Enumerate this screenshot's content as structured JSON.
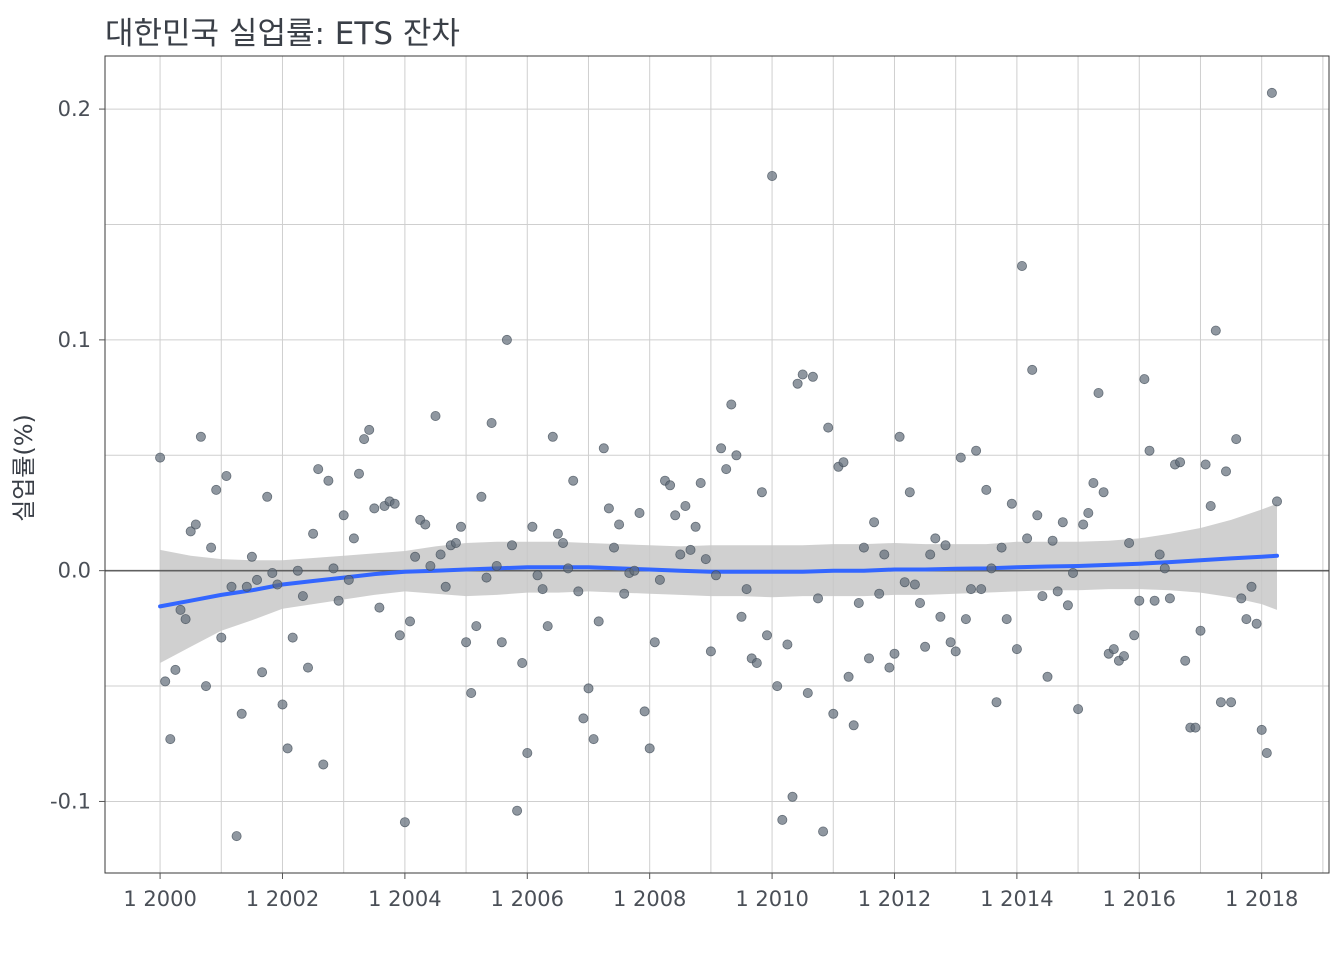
{
  "chart_data": {
    "type": "scatter",
    "title": "대한민국 실업률: ETS 잔차",
    "xlabel": "",
    "ylabel": "실업률(%)",
    "x_ticks": [
      "1 2000",
      "1 2002",
      "1 2004",
      "1 2006",
      "1 2008",
      "1 2010",
      "1 2012",
      "1 2014",
      "1 2016",
      "1 2018"
    ],
    "y_ticks": [
      "-0.1",
      "0.0",
      "0.1",
      "0.2"
    ],
    "xlim": [
      1999.1,
      2019.1
    ],
    "ylim": [
      -0.131,
      0.223
    ],
    "grid": true,
    "reference_line_y": 0,
    "colors": {
      "points": "#5f6b78",
      "smooth": "#3366ff",
      "band": "#c8c8c8",
      "zero_line": "#606060",
      "grid": "#cfcfcf",
      "border": "#3a3a3a"
    },
    "series": [
      {
        "type": "scatter",
        "x": [
          2000.0,
          2000.083,
          2000.167,
          2000.25,
          2000.333,
          2000.417,
          2000.5,
          2000.583,
          2000.667,
          2000.75,
          2000.833,
          2000.917,
          2001.0,
          2001.083,
          2001.167,
          2001.25,
          2001.333,
          2001.417,
          2001.5,
          2001.583,
          2001.667,
          2001.75,
          2001.833,
          2001.917,
          2002.0,
          2002.083,
          2002.167,
          2002.25,
          2002.333,
          2002.417,
          2002.5,
          2002.583,
          2002.667,
          2002.75,
          2002.833,
          2002.917,
          2003.0,
          2003.083,
          2003.167,
          2003.25,
          2003.333,
          2003.417,
          2003.5,
          2003.583,
          2003.667,
          2003.75,
          2003.833,
          2003.917,
          2004.0,
          2004.083,
          2004.167,
          2004.25,
          2004.333,
          2004.417,
          2004.5,
          2004.583,
          2004.667,
          2004.75,
          2004.833,
          2004.917,
          2005.0,
          2005.083,
          2005.167,
          2005.25,
          2005.333,
          2005.417,
          2005.5,
          2005.583,
          2005.667,
          2005.75,
          2005.833,
          2005.917,
          2006.0,
          2006.083,
          2006.167,
          2006.25,
          2006.333,
          2006.417,
          2006.5,
          2006.583,
          2006.667,
          2006.75,
          2006.833,
          2006.917,
          2007.0,
          2007.083,
          2007.167,
          2007.25,
          2007.333,
          2007.417,
          2007.5,
          2007.583,
          2007.667,
          2007.75,
          2007.833,
          2007.917,
          2008.0,
          2008.083,
          2008.167,
          2008.25,
          2008.333,
          2008.417,
          2008.5,
          2008.583,
          2008.667,
          2008.75,
          2008.833,
          2008.917,
          2009.0,
          2009.083,
          2009.167,
          2009.25,
          2009.333,
          2009.417,
          2009.5,
          2009.583,
          2009.667,
          2009.75,
          2009.833,
          2009.917,
          2010.0,
          2010.083,
          2010.167,
          2010.25,
          2010.333,
          2010.417,
          2010.5,
          2010.583,
          2010.667,
          2010.75,
          2010.833,
          2010.917,
          2011.0,
          2011.083,
          2011.167,
          2011.25,
          2011.333,
          2011.417,
          2011.5,
          2011.583,
          2011.667,
          2011.75,
          2011.833,
          2011.917,
          2012.0,
          2012.083,
          2012.167,
          2012.25,
          2012.333,
          2012.417,
          2012.5,
          2012.583,
          2012.667,
          2012.75,
          2012.833,
          2012.917,
          2013.0,
          2013.083,
          2013.167,
          2013.25,
          2013.333,
          2013.417,
          2013.5,
          2013.583,
          2013.667,
          2013.75,
          2013.833,
          2013.917,
          2014.0,
          2014.083,
          2014.167,
          2014.25,
          2014.333,
          2014.417,
          2014.5,
          2014.583,
          2014.667,
          2014.75,
          2014.833,
          2014.917,
          2015.0,
          2015.083,
          2015.167,
          2015.25,
          2015.333,
          2015.417,
          2015.5,
          2015.583,
          2015.667,
          2015.75,
          2015.833,
          2015.917,
          2016.0,
          2016.083,
          2016.167,
          2016.25,
          2016.333,
          2016.417,
          2016.5,
          2016.583,
          2016.667,
          2016.75,
          2016.833,
          2016.917,
          2017.0,
          2017.083,
          2017.167,
          2017.25,
          2017.333,
          2017.417,
          2017.5,
          2017.583,
          2017.667,
          2017.75,
          2017.833,
          2017.917,
          2018.0,
          2018.083,
          2018.167,
          2018.25
        ],
        "y": [
          0.049,
          -0.048,
          -0.073,
          -0.043,
          -0.017,
          -0.021,
          0.017,
          0.02,
          0.058,
          -0.05,
          0.01,
          0.035,
          -0.029,
          0.041,
          -0.007,
          -0.115,
          -0.062,
          -0.007,
          0.006,
          -0.004,
          -0.044,
          0.032,
          -0.001,
          -0.006,
          -0.058,
          -0.077,
          -0.029,
          0.0,
          -0.011,
          -0.042,
          0.016,
          0.044,
          -0.084,
          0.039,
          0.001,
          -0.013,
          0.024,
          -0.004,
          0.014,
          0.042,
          0.057,
          0.061,
          0.027,
          -0.016,
          0.028,
          0.03,
          0.029,
          -0.028,
          -0.109,
          -0.022,
          0.006,
          0.022,
          0.02,
          0.002,
          0.067,
          0.007,
          -0.007,
          0.011,
          0.012,
          0.019,
          -0.031,
          -0.053,
          -0.024,
          0.032,
          -0.003,
          0.064,
          0.002,
          -0.031,
          0.1,
          0.011,
          -0.104,
          -0.04,
          -0.079,
          0.019,
          -0.002,
          -0.008,
          -0.024,
          0.058,
          0.016,
          0.012,
          0.001,
          0.039,
          -0.009,
          -0.064,
          -0.051,
          -0.073,
          -0.022,
          0.053,
          0.027,
          0.01,
          0.02,
          -0.01,
          -0.001,
          0.0,
          0.025,
          -0.061,
          -0.077,
          -0.031,
          -0.004,
          0.039,
          0.037,
          0.024,
          0.007,
          0.028,
          0.009,
          0.019,
          0.038,
          0.005,
          -0.035,
          -0.002,
          0.053,
          0.044,
          0.072,
          0.05,
          -0.02,
          -0.008,
          -0.038,
          -0.04,
          0.034,
          -0.028,
          0.171,
          -0.05,
          -0.108,
          -0.032,
          -0.098,
          0.081,
          0.085,
          -0.053,
          0.084,
          -0.012,
          -0.113,
          0.062,
          -0.062,
          0.045,
          0.047,
          -0.046,
          -0.067,
          -0.014,
          0.01,
          -0.038,
          0.021,
          -0.01,
          0.007,
          -0.042,
          -0.036,
          0.058,
          -0.005,
          0.034,
          -0.006,
          -0.014,
          -0.033,
          0.007,
          0.014,
          -0.02,
          0.011,
          -0.031,
          -0.035,
          0.049,
          -0.021,
          -0.008,
          0.052,
          -0.008,
          0.035,
          0.001,
          -0.057,
          0.01,
          -0.021,
          0.029,
          -0.034,
          0.132,
          0.014,
          0.087,
          0.024,
          -0.011,
          -0.046,
          0.013,
          -0.009,
          0.021,
          -0.015,
          -0.001,
          -0.06,
          0.02,
          0.025,
          0.038,
          0.077,
          0.034,
          -0.036,
          -0.034,
          -0.039,
          -0.037,
          0.012,
          -0.028,
          -0.013,
          0.083,
          0.052,
          -0.013,
          0.007,
          0.001,
          -0.012,
          0.046,
          0.047,
          -0.039,
          -0.068,
          -0.068,
          -0.026,
          0.046,
          0.028,
          0.104,
          -0.057,
          0.043,
          -0.057,
          0.057,
          -0.012,
          -0.021,
          -0.007,
          -0.023,
          -0.069,
          -0.079,
          0.207,
          0.03
        ]
      },
      {
        "type": "line",
        "name": "",
        "x": [
          2000.0,
          2000.5,
          2001.0,
          2001.5,
          2002.0,
          2002.5,
          2003.0,
          2003.5,
          2004.0,
          2004.5,
          2005.0,
          2005.5,
          2006.0,
          2006.5,
          2007.0,
          2007.5,
          2008.0,
          2008.5,
          2009.0,
          2009.5,
          2010.0,
          2010.5,
          2011.0,
          2011.5,
          2012.0,
          2012.5,
          2013.0,
          2013.5,
          2014.0,
          2014.5,
          2015.0,
          2015.5,
          2016.0,
          2016.5,
          2017.0,
          2017.5,
          2018.0,
          2018.25
        ],
        "y": [
          -0.0155,
          -0.013,
          -0.0105,
          -0.0085,
          -0.006,
          -0.0045,
          -0.003,
          -0.0015,
          -0.0005,
          0.0,
          0.0005,
          0.001,
          0.0015,
          0.0015,
          0.0015,
          0.001,
          0.0005,
          0.0,
          -0.0005,
          -0.0005,
          -0.0005,
          -0.0005,
          0.0,
          0.0,
          0.0005,
          0.0005,
          0.0008,
          0.001,
          0.0015,
          0.0018,
          0.002,
          0.0025,
          0.003,
          0.0037,
          0.0045,
          0.0053,
          0.006,
          0.0065
        ],
        "ci_upper": [
          0.009,
          0.0065,
          0.005,
          0.0045,
          0.0045,
          0.0055,
          0.0065,
          0.0075,
          0.0085,
          0.0105,
          0.012,
          0.0125,
          0.0125,
          0.0125,
          0.012,
          0.0115,
          0.011,
          0.0105,
          0.011,
          0.011,
          0.011,
          0.011,
          0.0115,
          0.0115,
          0.012,
          0.0115,
          0.0115,
          0.0115,
          0.0125,
          0.0125,
          0.0125,
          0.013,
          0.014,
          0.016,
          0.0185,
          0.022,
          0.0265,
          0.029
        ],
        "ci_lower": [
          -0.04,
          -0.033,
          -0.026,
          -0.0215,
          -0.0165,
          -0.0145,
          -0.0125,
          -0.0105,
          -0.009,
          -0.01,
          -0.011,
          -0.0105,
          -0.0095,
          -0.0095,
          -0.009,
          -0.0095,
          -0.01,
          -0.0105,
          -0.011,
          -0.011,
          -0.0115,
          -0.011,
          -0.011,
          -0.011,
          -0.0105,
          -0.0105,
          -0.01,
          -0.0095,
          -0.009,
          -0.0085,
          -0.0085,
          -0.008,
          -0.008,
          -0.0085,
          -0.0095,
          -0.0115,
          -0.0145,
          -0.017
        ]
      }
    ]
  }
}
